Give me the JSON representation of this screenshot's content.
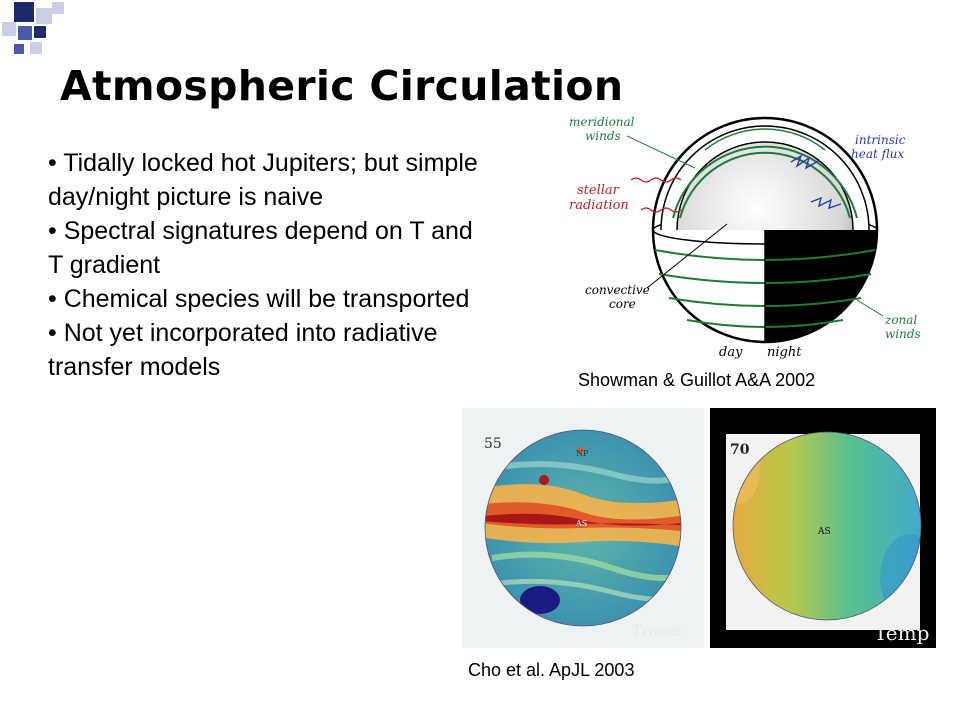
{
  "slide": {
    "title": "Atmospheric Circulation",
    "bullets": [
      "• Tidally locked hot Jupiters; but simple day/night picture is naive",
      "• Spectral signatures depend on T and T gradient",
      "• Chemical species will be transported",
      "• Not yet incorporated into radiative transfer models"
    ],
    "captions": {
      "diagram": "Showman & Guillot  A&A 2002",
      "simulations": "Cho et al. ApJL 2003"
    }
  },
  "diagram": {
    "labels": {
      "meridional": "meridional",
      "meridional_2": "winds",
      "stellar": "stellar",
      "stellar_2": "radiation",
      "intrinsic": "intrinsic",
      "intrinsic_2": "heat flux",
      "convective": "convective",
      "convective_2": "core",
      "zonal": "zonal",
      "zonal_2": "winds",
      "day": "day",
      "night": "night"
    }
  },
  "simulations": {
    "left_number": "55",
    "left_np": "NP",
    "left_as": "AS",
    "left_corner": "Tracer",
    "right_number": "70",
    "right_as": "AS",
    "right_corner": "Temp"
  },
  "colors": {
    "decor_navy": "#1f2a6b",
    "decor_blue": "#4a5aa8",
    "decor_light": "#c9cde6",
    "label_green": "#1f7a3a",
    "label_red": "#c0202a",
    "label_blue": "#2a3ab0"
  }
}
